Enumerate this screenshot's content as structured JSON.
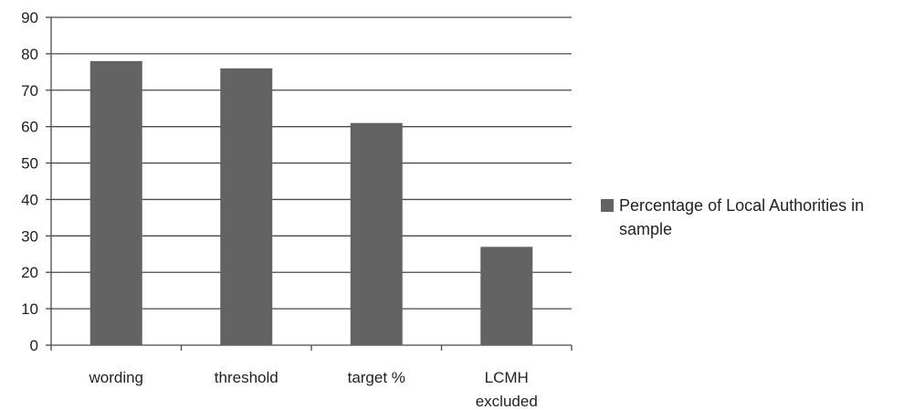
{
  "chart_data": {
    "type": "bar",
    "title": "",
    "xlabel": "",
    "ylabel": "",
    "categories": [
      [
        "wording"
      ],
      [
        "threshold"
      ],
      [
        "target %"
      ],
      [
        "LCMH",
        "excluded"
      ]
    ],
    "series": [
      {
        "name": "Percentage of Local Authorities in sample",
        "values": [
          78,
          76,
          61,
          27
        ]
      }
    ],
    "ylim": [
      0,
      90
    ],
    "yticks": [
      "0",
      "10",
      "20",
      "30",
      "40",
      "50",
      "60",
      "70",
      "80",
      "90"
    ],
    "grid": true,
    "legend_position": "right",
    "colors": {
      "bar": "#636363",
      "grid": "#4a4a4a",
      "axis": "#4a4a4a"
    }
  }
}
